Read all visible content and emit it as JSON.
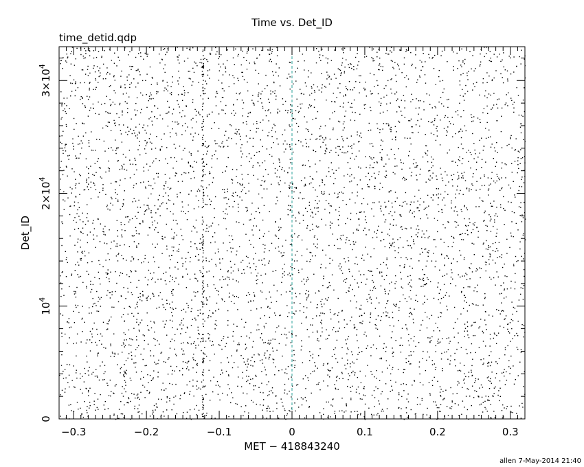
{
  "chart_data": {
    "type": "scatter",
    "title": "Time vs. Det_ID",
    "subtitle": "time_detid.qdp",
    "xlabel": "MET − 418843240",
    "ylabel": "Det_ID",
    "xlim": [
      -0.32,
      0.32
    ],
    "ylim": [
      0,
      33000
    ],
    "x_ticks": [
      {
        "value": -0.3,
        "label": "−0.3"
      },
      {
        "value": -0.2,
        "label": "−0.2"
      },
      {
        "value": -0.1,
        "label": "−0.1"
      },
      {
        "value": 0,
        "label": "0"
      },
      {
        "value": 0.1,
        "label": "0.1"
      },
      {
        "value": 0.2,
        "label": "0.2"
      },
      {
        "value": 0.3,
        "label": "0.3"
      }
    ],
    "y_ticks": [
      {
        "value": 0,
        "mantissa": "0",
        "exponent": ""
      },
      {
        "value": 10000,
        "mantissa": "10",
        "exponent": "4"
      },
      {
        "value": 20000,
        "mantissa": "2×10",
        "exponent": "4"
      },
      {
        "value": 30000,
        "mantissa": "3×10",
        "exponent": "4"
      }
    ],
    "reference_line": {
      "x": 0,
      "color": "#2aa198",
      "style": "dashed"
    },
    "point_count": 5200,
    "point_color": "#000000",
    "background": "#ffffff",
    "grid": false,
    "legend": "none"
  },
  "footer": {
    "stamp": "allen  7-May-2014 21:40"
  }
}
